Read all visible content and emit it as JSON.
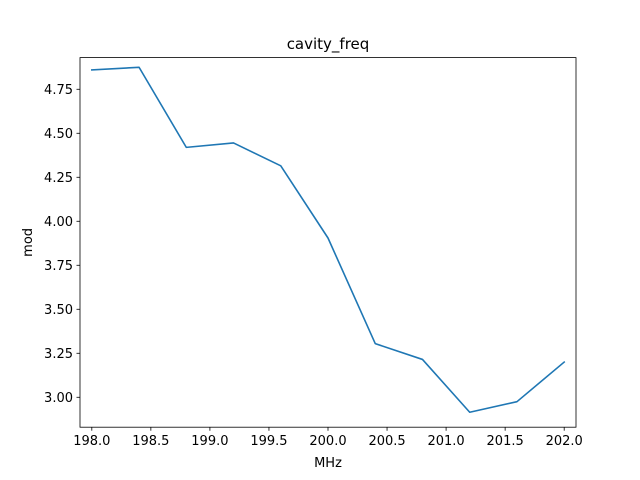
{
  "chart_data": {
    "type": "line",
    "title": "cavity_freq",
    "xlabel": "MHz",
    "ylabel": "mod",
    "xlim": [
      197.9,
      202.1
    ],
    "ylim": [
      2.83,
      4.93
    ],
    "x_ticks": [
      198.0,
      198.5,
      199.0,
      199.5,
      200.0,
      200.5,
      201.0,
      201.5,
      202.0
    ],
    "x_tick_labels": [
      "198.0",
      "198.5",
      "199.0",
      "199.5",
      "200.0",
      "200.5",
      "201.0",
      "201.5",
      "202.0"
    ],
    "y_ticks": [
      3.0,
      3.25,
      3.5,
      3.75,
      4.0,
      4.25,
      4.5,
      4.75
    ],
    "y_tick_labels": [
      "3.00",
      "3.25",
      "3.50",
      "3.75",
      "4.00",
      "4.25",
      "4.50",
      "4.75"
    ],
    "grid": false,
    "series": [
      {
        "color": "#1f77b4",
        "x": [
          198.0,
          198.4,
          198.8,
          199.2,
          199.6,
          200.0,
          200.4,
          200.8,
          201.2,
          201.6,
          202.0
        ],
        "values": [
          4.86,
          4.875,
          4.42,
          4.445,
          4.315,
          3.905,
          3.305,
          3.215,
          2.915,
          2.975,
          3.2
        ]
      }
    ]
  }
}
